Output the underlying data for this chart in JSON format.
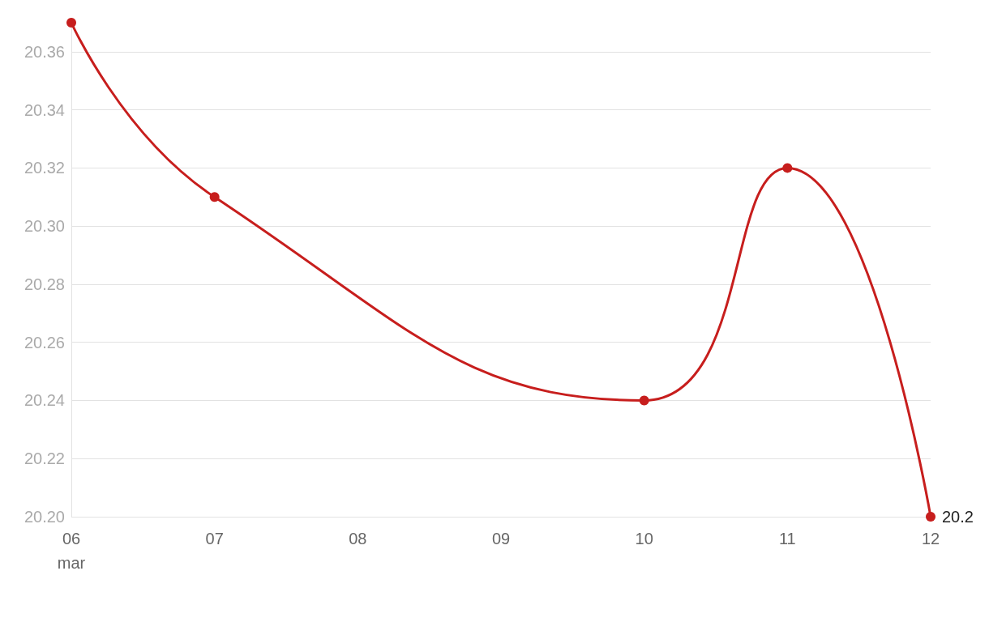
{
  "chart_data": {
    "type": "line",
    "x": [
      "--03-06",
      "--03-07",
      "--03-10",
      "--03-11",
      "--03-12"
    ],
    "series": [
      {
        "color": "#c71e1d",
        "values": [
          20.37,
          20.31,
          20.24,
          20.32,
          20.2
        ],
        "value_labels": [
          null,
          null,
          null,
          null,
          "20.2"
        ]
      }
    ],
    "xlim": [
      "--03-06",
      "--03-12"
    ],
    "xticks": [
      {
        "value": "--03-06",
        "label": "06\nmar"
      },
      {
        "value": "--03-07",
        "label": "07"
      },
      {
        "value": "--03-08",
        "label": "08"
      },
      {
        "value": "--03-09",
        "label": "09"
      },
      {
        "value": "--03-10",
        "label": "10"
      },
      {
        "value": "--03-11",
        "label": "11"
      },
      {
        "value": "--03-12",
        "label": "12"
      }
    ],
    "ylim": [
      20.2,
      20.37
    ],
    "yticks": [
      {
        "value": 20.2,
        "label": "20.20"
      },
      {
        "value": 20.22,
        "label": "20.22"
      },
      {
        "value": 20.24,
        "label": "20.24"
      },
      {
        "value": 20.26,
        "label": "20.26"
      },
      {
        "value": 20.28,
        "label": "20.28"
      },
      {
        "value": 20.3,
        "label": "20.30"
      },
      {
        "value": 20.32,
        "label": "20.32"
      },
      {
        "value": 20.34,
        "label": "20.34"
      },
      {
        "value": 20.36,
        "label": "20.36"
      }
    ],
    "grid": "y",
    "marker": "circle",
    "line_style": "solid"
  }
}
